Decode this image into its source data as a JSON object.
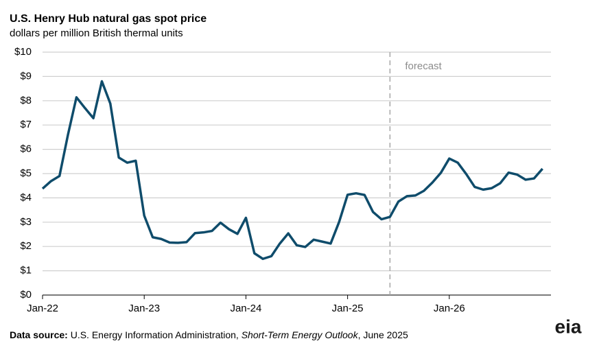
{
  "chart_data": {
    "type": "line",
    "title": "U.S. Henry Hub natural gas spot price",
    "subtitle": "dollars per million British thermal units",
    "categories": [
      "Jan-22",
      null,
      null,
      null,
      null,
      null,
      null,
      null,
      null,
      null,
      null,
      null,
      "Jan-23",
      null,
      null,
      null,
      null,
      null,
      null,
      null,
      null,
      null,
      null,
      null,
      "Jan-24",
      null,
      null,
      null,
      null,
      null,
      null,
      null,
      null,
      null,
      null,
      null,
      "Jan-25",
      null,
      null,
      null,
      null,
      null,
      null,
      null,
      null,
      null,
      null,
      null,
      "Jan-26",
      null,
      null,
      null,
      null,
      null,
      null,
      null,
      null,
      null,
      null,
      null
    ],
    "series": [
      {
        "name": "Henry Hub spot price",
        "color": "#0f4c6b",
        "values": [
          4.38,
          4.69,
          4.9,
          6.6,
          8.14,
          7.7,
          7.28,
          8.8,
          7.88,
          5.66,
          5.45,
          5.53,
          3.27,
          2.38,
          2.31,
          2.16,
          2.15,
          2.18,
          2.55,
          2.58,
          2.64,
          2.98,
          2.71,
          2.52,
          3.18,
          1.72,
          1.49,
          1.6,
          2.12,
          2.54,
          2.05,
          1.98,
          2.28,
          2.2,
          2.12,
          3.01,
          4.13,
          4.19,
          4.12,
          3.42,
          3.12,
          3.22,
          3.85,
          4.07,
          4.1,
          4.29,
          4.63,
          5.03,
          5.62,
          5.45,
          4.98,
          4.45,
          4.34,
          4.4,
          4.6,
          5.04,
          4.96,
          4.75,
          4.8,
          5.2
        ]
      }
    ],
    "ylim": [
      0,
      10
    ],
    "yticks": [
      {
        "value": 0,
        "label": "$0"
      },
      {
        "value": 1,
        "label": "$1"
      },
      {
        "value": 2,
        "label": "$2"
      },
      {
        "value": 3,
        "label": "$3"
      },
      {
        "value": 4,
        "label": "$4"
      },
      {
        "value": 5,
        "label": "$5"
      },
      {
        "value": 6,
        "label": "$6"
      },
      {
        "value": 7,
        "label": "$7"
      },
      {
        "value": 8,
        "label": "$8"
      },
      {
        "value": 9,
        "label": "$9"
      },
      {
        "value": 10,
        "label": "$10"
      }
    ],
    "grid": true,
    "annotation": {
      "text": "forecast",
      "start_index": 41
    },
    "source": {
      "label": "Data source:",
      "text": "U.S. Energy Information Administration,",
      "publication": "Short-Term Energy Outlook",
      "date": ", June 2025"
    },
    "logo": "eia"
  }
}
